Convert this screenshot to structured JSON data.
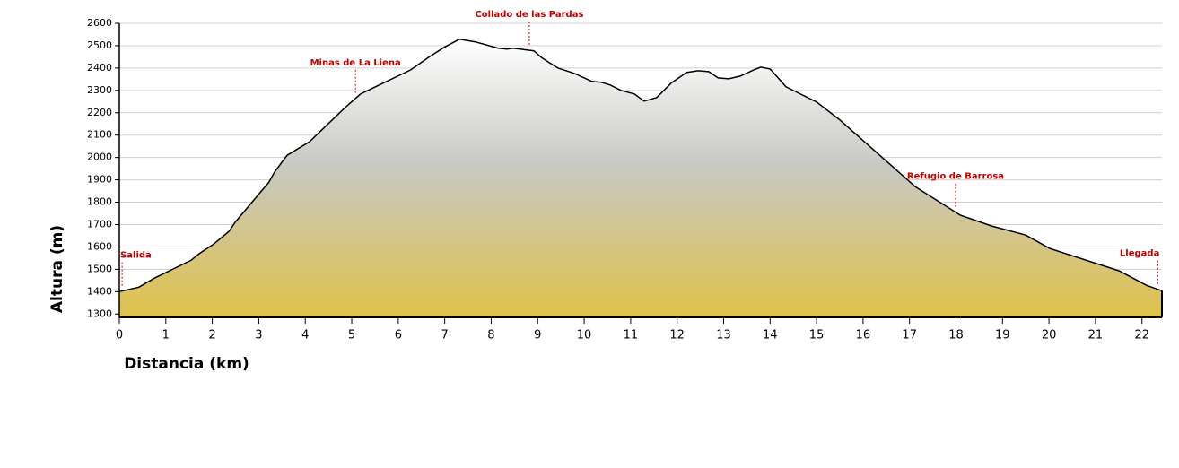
{
  "chart_data": {
    "type": "area",
    "xlabel": "Distancia (km)",
    "ylabel": "Altura (m)",
    "x": [
      0,
      0.42,
      0.75,
      1.54,
      1.72,
      2.03,
      2.36,
      2.49,
      3.22,
      3.34,
      3.61,
      4.09,
      4.86,
      5.19,
      6.27,
      6.66,
      6.99,
      7.32,
      7.66,
      8.15,
      8.34,
      8.47,
      8.92,
      9.07,
      9.25,
      9.44,
      9.79,
      10.17,
      10.37,
      10.56,
      10.79,
      11.08,
      11.29,
      11.56,
      11.87,
      12.2,
      12.45,
      12.68,
      12.88,
      13.11,
      13.36,
      13.65,
      13.8,
      14.0,
      14.19,
      14.34,
      15.0,
      15.48,
      17.12,
      18.09,
      18.76,
      19.5,
      20.02,
      21.51,
      22.1,
      22.43
    ],
    "values": [
      1400,
      1420,
      1460,
      1540,
      1570,
      1613,
      1670,
      1710,
      1890,
      1935,
      2010,
      2070,
      2224,
      2284,
      2392,
      2449,
      2493,
      2529,
      2517,
      2489,
      2485,
      2489,
      2477,
      2449,
      2424,
      2400,
      2376,
      2340,
      2336,
      2324,
      2300,
      2284,
      2252,
      2268,
      2332,
      2380,
      2388,
      2384,
      2356,
      2352,
      2364,
      2392,
      2404,
      2396,
      2352,
      2316,
      2248,
      2171,
      1870,
      1742,
      1694,
      1653,
      1593,
      1493,
      1428,
      1404
    ],
    "color": "#000000",
    "fill_top": "#ffffff",
    "fill_bottom": "#dfc24a",
    "xlim": [
      0,
      22.43
    ],
    "ylim": [
      1285,
      2600
    ],
    "xticks": [
      0,
      1,
      2,
      3,
      4,
      5,
      6,
      7,
      8,
      9,
      10,
      11,
      12,
      13,
      14,
      15,
      16,
      17,
      18,
      19,
      20,
      21,
      22
    ],
    "yticks": [
      1300,
      1400,
      1500,
      1600,
      1700,
      1800,
      1900,
      2000,
      2100,
      2200,
      2300,
      2400,
      2500,
      2600
    ],
    "grid": true,
    "annotations": [
      {
        "text": "Salida",
        "x": 0.06
      },
      {
        "text": "Minas de La Liena",
        "x": 5.08
      },
      {
        "text": "Collado de las Pardas",
        "x": 8.82
      },
      {
        "text": "Refugio de Barrosa",
        "x": 17.99
      },
      {
        "text": "Llegada",
        "x": 22.34
      }
    ]
  }
}
